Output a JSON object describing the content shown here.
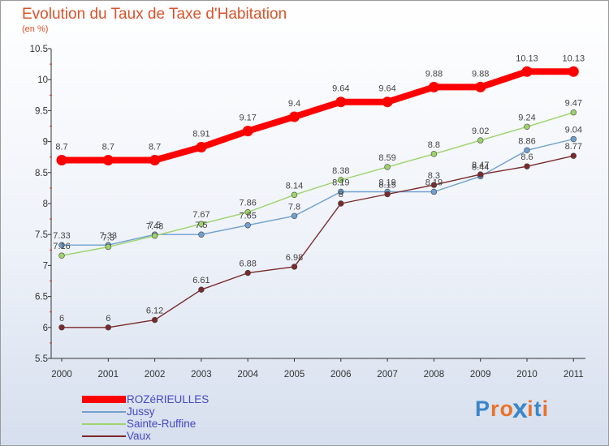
{
  "chart_data": {
    "type": "line",
    "title": "Evolution du Taux de Taxe d'Habitation",
    "subtitle": "(en %)",
    "xlabel": "",
    "ylabel": "",
    "x": [
      "2000",
      "2001",
      "2002",
      "2003",
      "2004",
      "2005",
      "2006",
      "2007",
      "2008",
      "2009",
      "2010",
      "2011"
    ],
    "ylim": [
      5.5,
      10.5
    ],
    "yticks": [
      "5.5",
      "6",
      "6.5",
      "7",
      "7.5",
      "8",
      "8.5",
      "9",
      "9.5",
      "10",
      "10.5"
    ],
    "grid": false,
    "legend_position": "bottom-left",
    "series": [
      {
        "name": "ROZéRIEULLES",
        "color": "#ff0000",
        "emphasis": true,
        "values": [
          8.7,
          8.7,
          8.7,
          8.91,
          9.17,
          9.4,
          9.64,
          9.64,
          9.88,
          9.88,
          10.13,
          10.13
        ],
        "labels": [
          "8.7",
          "8.7",
          "8.7",
          "8.91",
          "9.17",
          "9.4",
          "9.64",
          "9.64",
          "9.88",
          "9.88",
          "10.13",
          "10.13"
        ]
      },
      {
        "name": "Jussy",
        "color": "#6fa0cf",
        "emphasis": false,
        "values": [
          7.33,
          7.33,
          7.5,
          7.5,
          7.65,
          7.8,
          8.19,
          8.19,
          8.19,
          8.44,
          8.86,
          9.04
        ],
        "labels": [
          "7.33",
          "7.33",
          "7.5",
          "7.5",
          "7.65",
          "7.8",
          "8.19",
          "8.19",
          "8.19",
          "8.44",
          "8.86",
          "9.04"
        ]
      },
      {
        "name": "Sainte-Ruffine",
        "color": "#9ed36b",
        "emphasis": false,
        "values": [
          7.16,
          7.3,
          7.48,
          7.67,
          7.86,
          8.14,
          8.38,
          8.59,
          8.8,
          9.02,
          9.24,
          9.47
        ],
        "labels": [
          "7.16",
          "7.3",
          "7.48",
          "7.67",
          "7.86",
          "8.14",
          "8.38",
          "8.59",
          "8.8",
          "9.02",
          "9.24",
          "9.47"
        ]
      },
      {
        "name": "Vaux",
        "color": "#7a2a2a",
        "emphasis": false,
        "values": [
          6,
          6,
          6.12,
          6.61,
          6.88,
          6.98,
          8,
          8.15,
          8.3,
          8.47,
          8.6,
          8.77
        ],
        "labels": [
          "6",
          "6",
          "6.12",
          "6.61",
          "6.88",
          "6.98",
          "8",
          "8.15",
          "8.3",
          "8.47",
          "8.6",
          "8.77"
        ]
      }
    ]
  },
  "brand": {
    "logo_text": "Proxiti",
    "letter_colors": [
      "#3a86c8",
      "#e8732a",
      "#e8732a",
      "#3a86c8",
      "#e8732a",
      "#3a86c8",
      "#e8732a"
    ]
  }
}
